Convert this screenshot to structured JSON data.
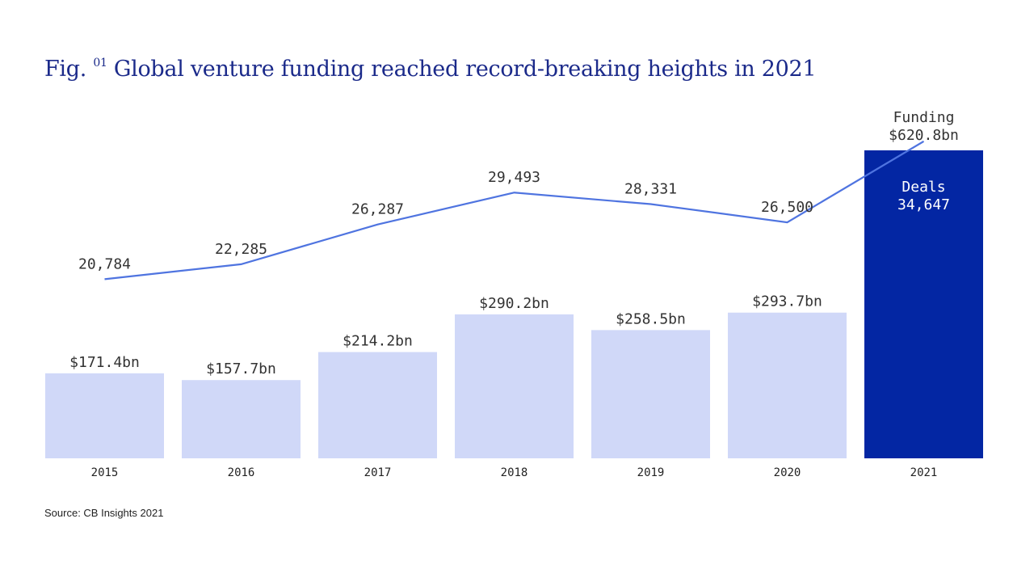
{
  "page": {
    "title_prefix": "Fig.",
    "title_number": "01",
    "title_text": "Global venture funding reached record-breaking heights in 2021",
    "source": "Source: CB Insights 2021"
  },
  "colors": {
    "bar_default": "#d0d8f8",
    "bar_highlight": "#0326a3",
    "line": "#4f74e0",
    "text": "#333333",
    "title": "#1b2a8a"
  },
  "chart_data": {
    "type": "bar",
    "categories": [
      "2015",
      "2016",
      "2017",
      "2018",
      "2019",
      "2020",
      "2021"
    ],
    "series": [
      {
        "name": "Funding",
        "type": "bar",
        "values": [
          171.4,
          157.7,
          214.2,
          290.2,
          258.5,
          293.7,
          620.8
        ],
        "labels": [
          "$171.4bn",
          "$157.7bn",
          "$214.2bn",
          "$290.2bn",
          "$258.5bn",
          "$293.7bn",
          "$620.8bn"
        ]
      },
      {
        "name": "Deals",
        "type": "line",
        "values": [
          20784,
          22285,
          26287,
          29493,
          28331,
          26500,
          34647
        ],
        "labels": [
          "20,784",
          "22,285",
          "26,287",
          "29,493",
          "28,331",
          "26,500",
          "34,647"
        ]
      }
    ],
    "highlight_index": 6,
    "ylim_bar": [
      0,
      620.8
    ],
    "ylim_line": [
      0,
      34647
    ]
  }
}
